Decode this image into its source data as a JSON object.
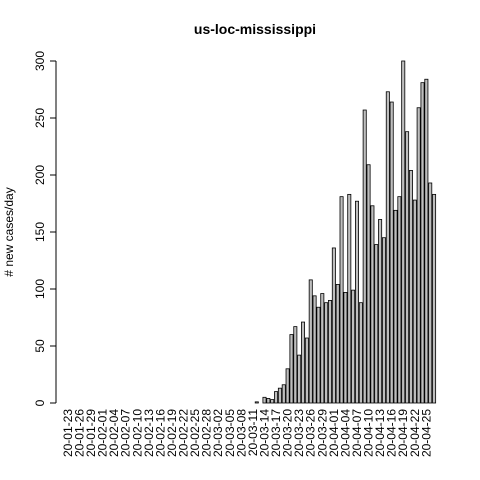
{
  "chart_data": {
    "type": "bar",
    "title": "us-loc-mississippi",
    "xlabel": "",
    "ylabel": "# new cases/day",
    "ylim": [
      0,
      300
    ],
    "y_ticks": [
      0,
      50,
      100,
      150,
      200,
      250,
      300
    ],
    "bar_color": "#bebebe",
    "border_color": "#000000",
    "tick_labels": [
      "20-01-23",
      "20-01-26",
      "20-01-29",
      "20-02-01",
      "20-02-04",
      "20-02-07",
      "20-02-10",
      "20-02-13",
      "20-02-16",
      "20-02-19",
      "20-02-22",
      "20-02-25",
      "20-02-28",
      "20-03-02",
      "20-03-05",
      "20-03-08",
      "20-03-11",
      "20-03-14",
      "20-03-17",
      "20-03-20",
      "20-03-23",
      "20-03-26",
      "20-03-29",
      "20-04-01",
      "20-04-04",
      "20-04-07",
      "20-04-10",
      "20-04-13",
      "20-04-16",
      "20-04-19",
      "20-04-22",
      "20-04-25"
    ],
    "categories": [
      "20-01-23",
      "20-01-24",
      "20-01-25",
      "20-01-26",
      "20-01-27",
      "20-01-28",
      "20-01-29",
      "20-01-30",
      "20-01-31",
      "20-02-01",
      "20-02-02",
      "20-02-03",
      "20-02-04",
      "20-02-05",
      "20-02-06",
      "20-02-07",
      "20-02-08",
      "20-02-09",
      "20-02-10",
      "20-02-11",
      "20-02-12",
      "20-02-13",
      "20-02-14",
      "20-02-15",
      "20-02-16",
      "20-02-17",
      "20-02-18",
      "20-02-19",
      "20-02-20",
      "20-02-21",
      "20-02-22",
      "20-02-23",
      "20-02-24",
      "20-02-25",
      "20-02-26",
      "20-02-27",
      "20-02-28",
      "20-02-29",
      "20-03-01",
      "20-03-02",
      "20-03-03",
      "20-03-04",
      "20-03-05",
      "20-03-06",
      "20-03-07",
      "20-03-08",
      "20-03-09",
      "20-03-10",
      "20-03-11",
      "20-03-12",
      "20-03-13",
      "20-03-14",
      "20-03-15",
      "20-03-16",
      "20-03-17",
      "20-03-18",
      "20-03-19",
      "20-03-20",
      "20-03-21",
      "20-03-22",
      "20-03-23",
      "20-03-24",
      "20-03-25",
      "20-03-26",
      "20-03-27",
      "20-03-28",
      "20-03-29",
      "20-03-30",
      "20-03-31",
      "20-04-01",
      "20-04-02",
      "20-04-03",
      "20-04-04",
      "20-04-05",
      "20-04-06",
      "20-04-07",
      "20-04-08",
      "20-04-09",
      "20-04-10",
      "20-04-11",
      "20-04-12",
      "20-04-13",
      "20-04-14",
      "20-04-15",
      "20-04-16",
      "20-04-17",
      "20-04-18",
      "20-04-19",
      "20-04-20",
      "20-04-21",
      "20-04-22",
      "20-04-23",
      "20-04-24",
      "20-04-25",
      "20-04-26",
      "20-04-27"
    ],
    "values": [
      0,
      0,
      0,
      0,
      0,
      0,
      0,
      0,
      0,
      0,
      0,
      0,
      0,
      0,
      0,
      0,
      0,
      0,
      0,
      0,
      0,
      0,
      0,
      0,
      0,
      0,
      0,
      0,
      0,
      0,
      0,
      0,
      0,
      0,
      0,
      0,
      0,
      0,
      0,
      0,
      0,
      0,
      0,
      0,
      0,
      0,
      0,
      0,
      0,
      1,
      0,
      5,
      4,
      3,
      10,
      13,
      16,
      30,
      60,
      67,
      42,
      71,
      57,
      108,
      94,
      84,
      96,
      88,
      90,
      136,
      104,
      181,
      97,
      183,
      99,
      177,
      88,
      257,
      209,
      173,
      139,
      161,
      145,
      273,
      264,
      169,
      181,
      300,
      238,
      204,
      178,
      259,
      281,
      284,
      193,
      183
    ]
  }
}
